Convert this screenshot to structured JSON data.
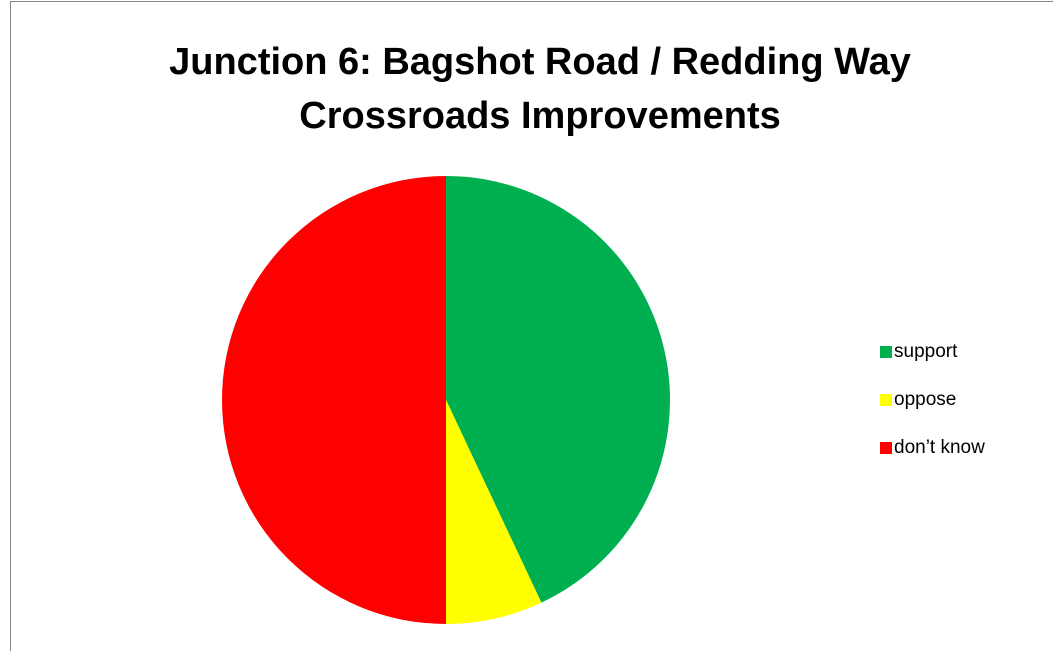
{
  "chart_data": {
    "type": "pie",
    "title": [
      "Junction 6: Bagshot Road / Redding Way",
      "Crossroads Improvements"
    ],
    "categories": [
      "support",
      "oppose",
      "don’t know"
    ],
    "values": [
      43,
      7,
      50
    ],
    "colors": [
      "#00b050",
      "#ffff00",
      "#ff0000"
    ],
    "legend": "right"
  }
}
